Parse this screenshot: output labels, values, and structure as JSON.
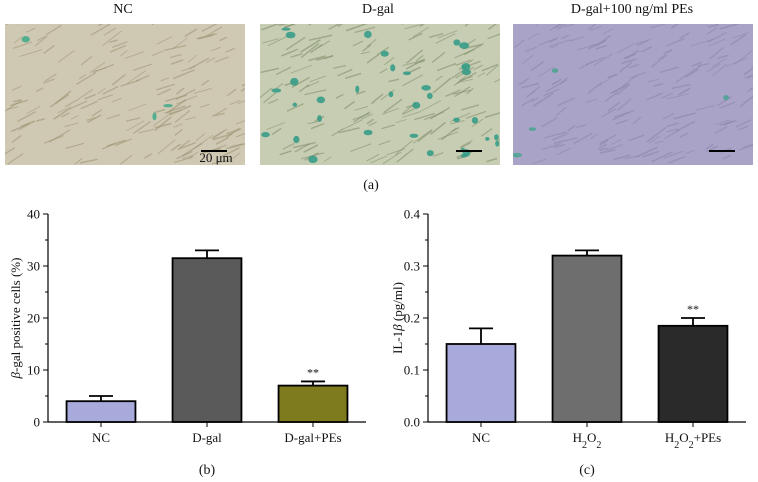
{
  "panel_a": {
    "label": "(a)",
    "images": [
      {
        "title": "NC",
        "tint": "#cfc9b4",
        "cell_color": "#9c8f6f",
        "stain_color": "#3fa88a",
        "stain_count": 3,
        "scale_bar_label": "20 μm"
      },
      {
        "title": "D-gal",
        "tint": "#c6cdb2",
        "cell_color": "#7d8b68",
        "stain_color": "#2f9a86",
        "stain_count": 34,
        "scale_bar_label": ""
      },
      {
        "title": "D-gal+100 ng/ml PEs",
        "tint": "#a9a3c8",
        "cell_color": "#8a84a8",
        "stain_color": "#4aa58f",
        "stain_count": 4,
        "scale_bar_label": ""
      }
    ]
  },
  "chart_data": [
    {
      "type": "bar",
      "panel_label": "(b)",
      "categories": [
        "NC",
        "D-gal",
        "D-gal+PEs"
      ],
      "values": [
        4.0,
        31.5,
        7.0
      ],
      "errors": [
        1.0,
        1.5,
        0.8
      ],
      "significance": [
        "",
        "",
        "**"
      ],
      "colors": [
        "#a8aadb",
        "#5a5a5a",
        "#7e7a1e"
      ],
      "ylabel_prefix": "β",
      "ylabel": "-gal positive cells (%)",
      "ylim": [
        0,
        40
      ],
      "yticks": [
        0,
        10,
        20,
        30,
        40
      ],
      "yticklabels": [
        "0",
        "10",
        "20",
        "30",
        "40"
      ]
    },
    {
      "type": "bar",
      "panel_label": "(c)",
      "categories": [
        "NC",
        "H2O2",
        "H2O2+PEs"
      ],
      "categories_rich": [
        [
          {
            "t": "NC"
          }
        ],
        [
          {
            "t": "H"
          },
          {
            "t": "2",
            "sub": true
          },
          {
            "t": "O"
          },
          {
            "t": "2",
            "sub": true
          }
        ],
        [
          {
            "t": "H"
          },
          {
            "t": "2",
            "sub": true
          },
          {
            "t": "O"
          },
          {
            "t": "2",
            "sub": true
          },
          {
            "t": "+PEs"
          }
        ]
      ],
      "values": [
        0.15,
        0.32,
        0.185
      ],
      "errors": [
        0.03,
        0.01,
        0.015
      ],
      "significance": [
        "",
        "",
        "**"
      ],
      "colors": [
        "#a8aadb",
        "#6e6e6e",
        "#2a2a2a"
      ],
      "ylabel_rich": [
        {
          "t": "IL-1"
        },
        {
          "t": "β",
          "italic": true
        },
        {
          "t": " (pg/ml)"
        }
      ],
      "ylabel": "IL-1β (pg/ml)",
      "ylim": [
        0,
        0.4
      ],
      "yticks": [
        0,
        0.1,
        0.2,
        0.3,
        0.4
      ],
      "yticklabels": [
        "0.0",
        "0.1",
        "0.2",
        "0.3",
        "0.4"
      ]
    }
  ]
}
